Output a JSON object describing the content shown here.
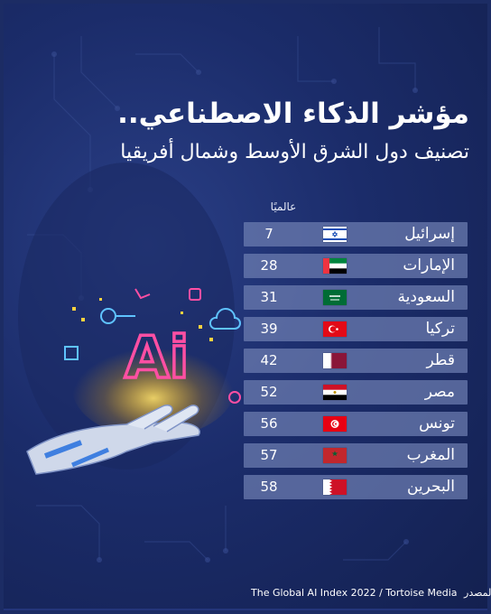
{
  "header": {
    "title": "مؤشر الذكاء الاصطناعي..",
    "subtitle": "تصنيف دول الشرق الأوسط وشمال أفريقيا"
  },
  "table": {
    "rank_header": "عالميًا",
    "rows": [
      {
        "country": "إسرائيل",
        "rank": "7",
        "flag": "israel-flag"
      },
      {
        "country": "الإمارات",
        "rank": "28",
        "flag": "uae-flag"
      },
      {
        "country": "السعودية",
        "rank": "31",
        "flag": "saudi-flag"
      },
      {
        "country": "تركيا",
        "rank": "39",
        "flag": "turkey-flag"
      },
      {
        "country": "قطر",
        "rank": "42",
        "flag": "qatar-flag"
      },
      {
        "country": "مصر",
        "rank": "52",
        "flag": "egypt-flag"
      },
      {
        "country": "تونس",
        "rank": "56",
        "flag": "tunisia-flag"
      },
      {
        "country": "المغرب",
        "rank": "57",
        "flag": "morocco-flag"
      },
      {
        "country": "البحرين",
        "rank": "58",
        "flag": "bahrain-flag"
      }
    ]
  },
  "source": {
    "label": "المصدر:",
    "text": "The Global AI Index 2022 / Tortoise Media"
  },
  "illustration": {
    "ai_text": "Ai",
    "icon": "robot-hand-ai-illustration"
  },
  "colors": {
    "background": "#1b2c6a",
    "row": "#6e7eb2",
    "neon_pink": "#ff4fa3",
    "neon_blue": "#5fc3ff",
    "accent_yellow": "#ffd23f"
  }
}
